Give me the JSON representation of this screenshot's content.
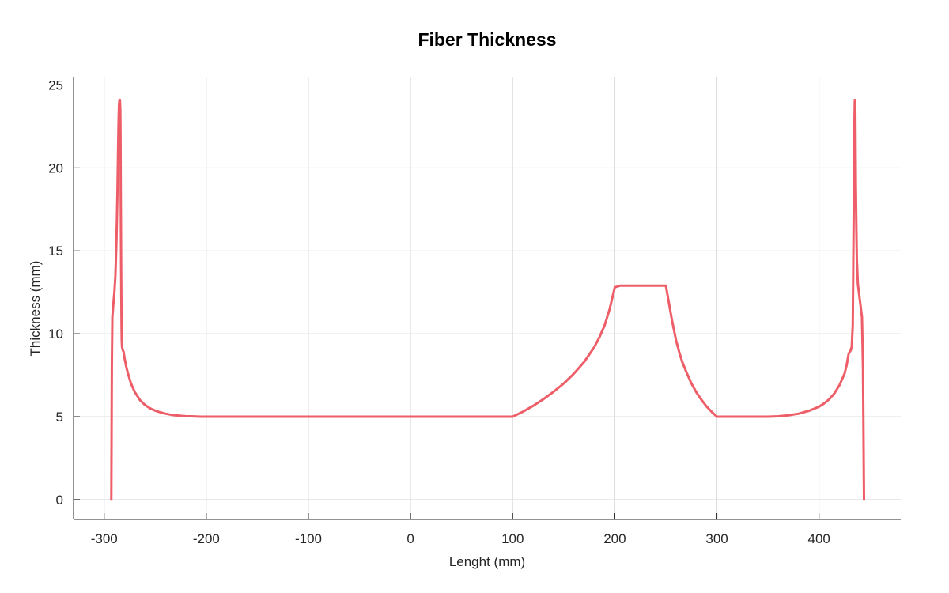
{
  "chart_data": {
    "type": "line",
    "title": "Fiber Thickness",
    "xlabel": "Lenght (mm)",
    "ylabel": "Thickness (mm)",
    "xlim": [
      -330,
      480
    ],
    "ylim": [
      -1.2,
      25.5
    ],
    "xticks": [
      -300,
      -200,
      -100,
      0,
      100,
      200,
      300,
      400
    ],
    "yticks": [
      0,
      5,
      10,
      15,
      20,
      25
    ],
    "xtick_labels": [
      "-300",
      "-200",
      "-100",
      "0",
      "100",
      "200",
      "300",
      "400"
    ],
    "ytick_labels": [
      "0",
      "5",
      "10",
      "15",
      "20",
      "25"
    ],
    "grid": true,
    "line_color": "#EE5E68",
    "series": [
      {
        "x": [
          -293,
          -292.5,
          -292,
          -291,
          -290,
          -289,
          -288,
          -287,
          -286,
          -285.5,
          -285,
          -284.6,
          -284.2,
          -284,
          -283.8,
          -283.4,
          -283,
          -282.8,
          -282.5,
          -282,
          -281,
          -280,
          -278,
          -276,
          -274,
          -272,
          -270,
          -265,
          -260,
          -255,
          -250,
          -245,
          -240,
          -235,
          -230,
          -225,
          -220,
          -215,
          -210,
          -205,
          -200,
          -150,
          -100,
          -50,
          0,
          50,
          100,
          110,
          120,
          130,
          140,
          150,
          160,
          170,
          180,
          185,
          190,
          195,
          200,
          205,
          210,
          215,
          220,
          225,
          230,
          235,
          240,
          245,
          250,
          252,
          254,
          256,
          258,
          260,
          263,
          266,
          270,
          275,
          280,
          285,
          290,
          295,
          300,
          320,
          350,
          360,
          370,
          380,
          390,
          400,
          405,
          410,
          415,
          420,
          425,
          427,
          429,
          431,
          432,
          433,
          434,
          434.5,
          435,
          435.5,
          436,
          436.5,
          437,
          438,
          440,
          442,
          443,
          443.5,
          444
        ],
        "y": [
          0,
          8,
          11,
          11.8,
          12.5,
          13.5,
          15.5,
          18.5,
          22.5,
          23.8,
          24.1,
          24.1,
          23.5,
          22,
          19,
          14,
          10.5,
          9.6,
          9.2,
          9.05,
          8.9,
          8.5,
          7.9,
          7.45,
          7.05,
          6.75,
          6.48,
          6.0,
          5.7,
          5.5,
          5.36,
          5.26,
          5.18,
          5.12,
          5.08,
          5.05,
          5.03,
          5.02,
          5.01,
          5.0,
          5.0,
          5.0,
          5.0,
          5.0,
          5.0,
          5.0,
          5.0,
          5.3,
          5.65,
          6.05,
          6.5,
          7.0,
          7.6,
          8.3,
          9.2,
          9.8,
          10.5,
          11.5,
          12.8,
          12.9,
          12.9,
          12.9,
          12.9,
          12.9,
          12.9,
          12.9,
          12.9,
          12.9,
          12.9,
          12.2,
          11.5,
          10.8,
          10.2,
          9.6,
          8.9,
          8.3,
          7.7,
          7.0,
          6.45,
          6.0,
          5.6,
          5.28,
          5.0,
          5.0,
          5.0,
          5.02,
          5.08,
          5.18,
          5.35,
          5.6,
          5.8,
          6.05,
          6.4,
          6.9,
          7.6,
          8.1,
          8.8,
          9.0,
          9.2,
          10.5,
          18,
          22,
          24.1,
          23.5,
          19,
          16.5,
          14.5,
          13.0,
          12.0,
          11.0,
          8.0,
          4.0,
          0
        ]
      }
    ]
  }
}
